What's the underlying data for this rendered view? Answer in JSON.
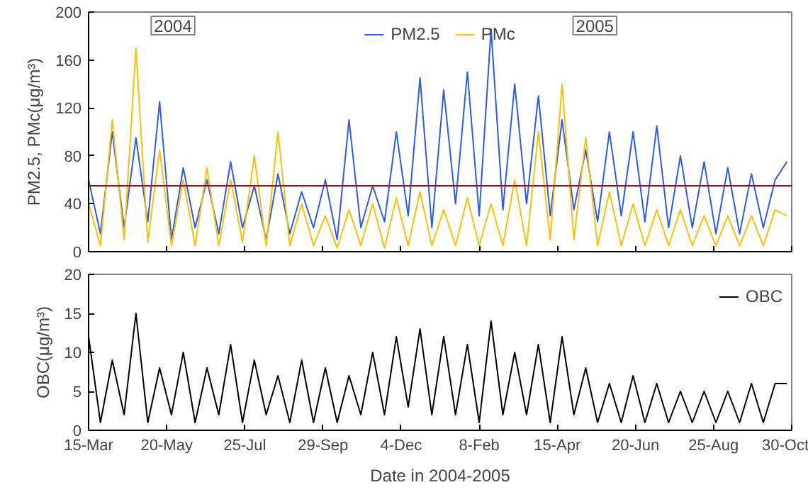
{
  "chart_data": [
    {
      "type": "line",
      "ylabel": "PM2.5, PMc(μg/m³)",
      "x": [
        "2004-03-15",
        "2004-03-25",
        "2004-04-04",
        "2004-04-14",
        "2004-04-24",
        "2004-05-04",
        "2004-05-14",
        "2004-05-24",
        "2004-06-03",
        "2004-06-13",
        "2004-06-23",
        "2004-07-03",
        "2004-07-13",
        "2004-07-23",
        "2004-08-02",
        "2004-08-12",
        "2004-08-22",
        "2004-09-01",
        "2004-09-11",
        "2004-09-21",
        "2004-10-01",
        "2004-10-11",
        "2004-10-21",
        "2004-10-31",
        "2004-11-10",
        "2004-11-20",
        "2004-11-30",
        "2004-12-10",
        "2004-12-20",
        "2004-12-30",
        "2005-01-09",
        "2005-01-19",
        "2005-01-29",
        "2005-02-08",
        "2005-02-18",
        "2005-02-28",
        "2005-03-10",
        "2005-03-20",
        "2005-03-30",
        "2005-04-09",
        "2005-04-19",
        "2005-04-29",
        "2005-05-09",
        "2005-05-19",
        "2005-05-29",
        "2005-06-08",
        "2005-06-18",
        "2005-06-28",
        "2005-07-08",
        "2005-07-18",
        "2005-07-28",
        "2005-08-07",
        "2005-08-17",
        "2005-08-27",
        "2005-09-06",
        "2005-09-16",
        "2005-09-26",
        "2005-10-06",
        "2005-10-16",
        "2005-10-26"
      ],
      "series": [
        {
          "name": "PM2.5",
          "color": "#2a5cf5",
          "values": [
            60,
            15,
            100,
            20,
            95,
            25,
            125,
            10,
            70,
            20,
            60,
            15,
            75,
            20,
            55,
            10,
            65,
            15,
            50,
            20,
            60,
            10,
            110,
            20,
            55,
            25,
            100,
            30,
            145,
            20,
            135,
            40,
            150,
            30,
            186,
            35,
            140,
            40,
            130,
            30,
            110,
            35,
            85,
            25,
            100,
            30,
            100,
            25,
            105,
            20,
            80,
            20,
            75,
            15,
            70,
            15,
            65,
            20,
            60,
            75
          ]
        },
        {
          "name": "PMc",
          "color": "#ffc000",
          "values": [
            40,
            5,
            110,
            10,
            170,
            8,
            85,
            5,
            60,
            5,
            70,
            5,
            60,
            8,
            80,
            5,
            100,
            5,
            40,
            5,
            30,
            3,
            35,
            5,
            40,
            3,
            45,
            5,
            50,
            5,
            35,
            5,
            45,
            5,
            40,
            5,
            60,
            5,
            100,
            10,
            140,
            10,
            95,
            5,
            50,
            5,
            40,
            5,
            35,
            5,
            35,
            5,
            30,
            5,
            30,
            5,
            30,
            5,
            35,
            30
          ]
        }
      ],
      "xlim": [
        "2004-03-15",
        "2005-10-30"
      ],
      "xticks": [
        {
          "value": "2004-03-15",
          "label": null
        },
        {
          "value": "2004-05-20",
          "label": null
        },
        {
          "value": "2004-07-25",
          "label": null
        },
        {
          "value": "2004-09-29",
          "label": null
        },
        {
          "value": "2004-12-04",
          "label": null
        },
        {
          "value": "2005-02-08",
          "label": null
        },
        {
          "value": "2005-04-15",
          "label": null
        },
        {
          "value": "2005-06-20",
          "label": null
        },
        {
          "value": "2005-08-25",
          "label": null
        },
        {
          "value": "2005-10-30",
          "label": null
        }
      ],
      "ylim": [
        0,
        200
      ],
      "yticks": [
        0,
        40,
        80,
        120,
        160,
        200
      ],
      "ref_lines": [
        {
          "axis": "y",
          "value": 55,
          "color": "#c00000"
        }
      ],
      "annotations": [
        "2004",
        "2005"
      ],
      "tick_labels": "y",
      "legend": "top",
      "grid": false
    },
    {
      "type": "line",
      "xlabel": "Date in 2004-2005",
      "ylabel": "OBC(μg/m³)",
      "x": [
        "2004-03-15",
        "2004-03-25",
        "2004-04-04",
        "2004-04-14",
        "2004-04-24",
        "2004-05-04",
        "2004-05-14",
        "2004-05-24",
        "2004-06-03",
        "2004-06-13",
        "2004-06-23",
        "2004-07-03",
        "2004-07-13",
        "2004-07-23",
        "2004-08-02",
        "2004-08-12",
        "2004-08-22",
        "2004-09-01",
        "2004-09-11",
        "2004-09-21",
        "2004-10-01",
        "2004-10-11",
        "2004-10-21",
        "2004-10-31",
        "2004-11-10",
        "2004-11-20",
        "2004-11-30",
        "2004-12-10",
        "2004-12-20",
        "2004-12-30",
        "2005-01-09",
        "2005-01-19",
        "2005-01-29",
        "2005-02-08",
        "2005-02-18",
        "2005-02-28",
        "2005-03-10",
        "2005-03-20",
        "2005-03-30",
        "2005-04-09",
        "2005-04-19",
        "2005-04-29",
        "2005-05-09",
        "2005-05-19",
        "2005-05-29",
        "2005-06-08",
        "2005-06-18",
        "2005-06-28",
        "2005-07-08",
        "2005-07-18",
        "2005-07-28",
        "2005-08-07",
        "2005-08-17",
        "2005-08-27",
        "2005-09-06",
        "2005-09-16",
        "2005-09-26",
        "2005-10-06",
        "2005-10-16",
        "2005-10-26"
      ],
      "series": [
        {
          "name": "OBC",
          "color": "#000000",
          "values": [
            12,
            1,
            9,
            2,
            15,
            1,
            8,
            2,
            10,
            1,
            8,
            2,
            11,
            1,
            9,
            2,
            7,
            1,
            9,
            1,
            8,
            1,
            7,
            2,
            10,
            2,
            12,
            3,
            13,
            2,
            12,
            2,
            11,
            1,
            14,
            2,
            10,
            2,
            11,
            1,
            12,
            2,
            8,
            1,
            6,
            1,
            7,
            1,
            6,
            1,
            5,
            1,
            5,
            1,
            5,
            1,
            6,
            1,
            6,
            6
          ]
        }
      ],
      "xlim": [
        "2004-03-15",
        "2005-10-30"
      ],
      "xticks": [
        {
          "value": "2004-03-15",
          "label": "15-Mar"
        },
        {
          "value": "2004-05-20",
          "label": "20-May"
        },
        {
          "value": "2004-07-25",
          "label": "25-Jul"
        },
        {
          "value": "2004-09-29",
          "label": "29-Sep"
        },
        {
          "value": "2004-12-04",
          "label": "4-Dec"
        },
        {
          "value": "2005-02-08",
          "label": "8-Feb"
        },
        {
          "value": "2005-04-15",
          "label": "15-Apr"
        },
        {
          "value": "2005-06-20",
          "label": "20-Jun"
        },
        {
          "value": "2005-08-25",
          "label": "25-Aug"
        },
        {
          "value": "2005-10-30",
          "label": "30-Oct"
        }
      ],
      "ylim": [
        0,
        20
      ],
      "yticks": [
        0,
        5,
        10,
        15,
        20
      ],
      "legend": "top right",
      "grid": false
    }
  ]
}
